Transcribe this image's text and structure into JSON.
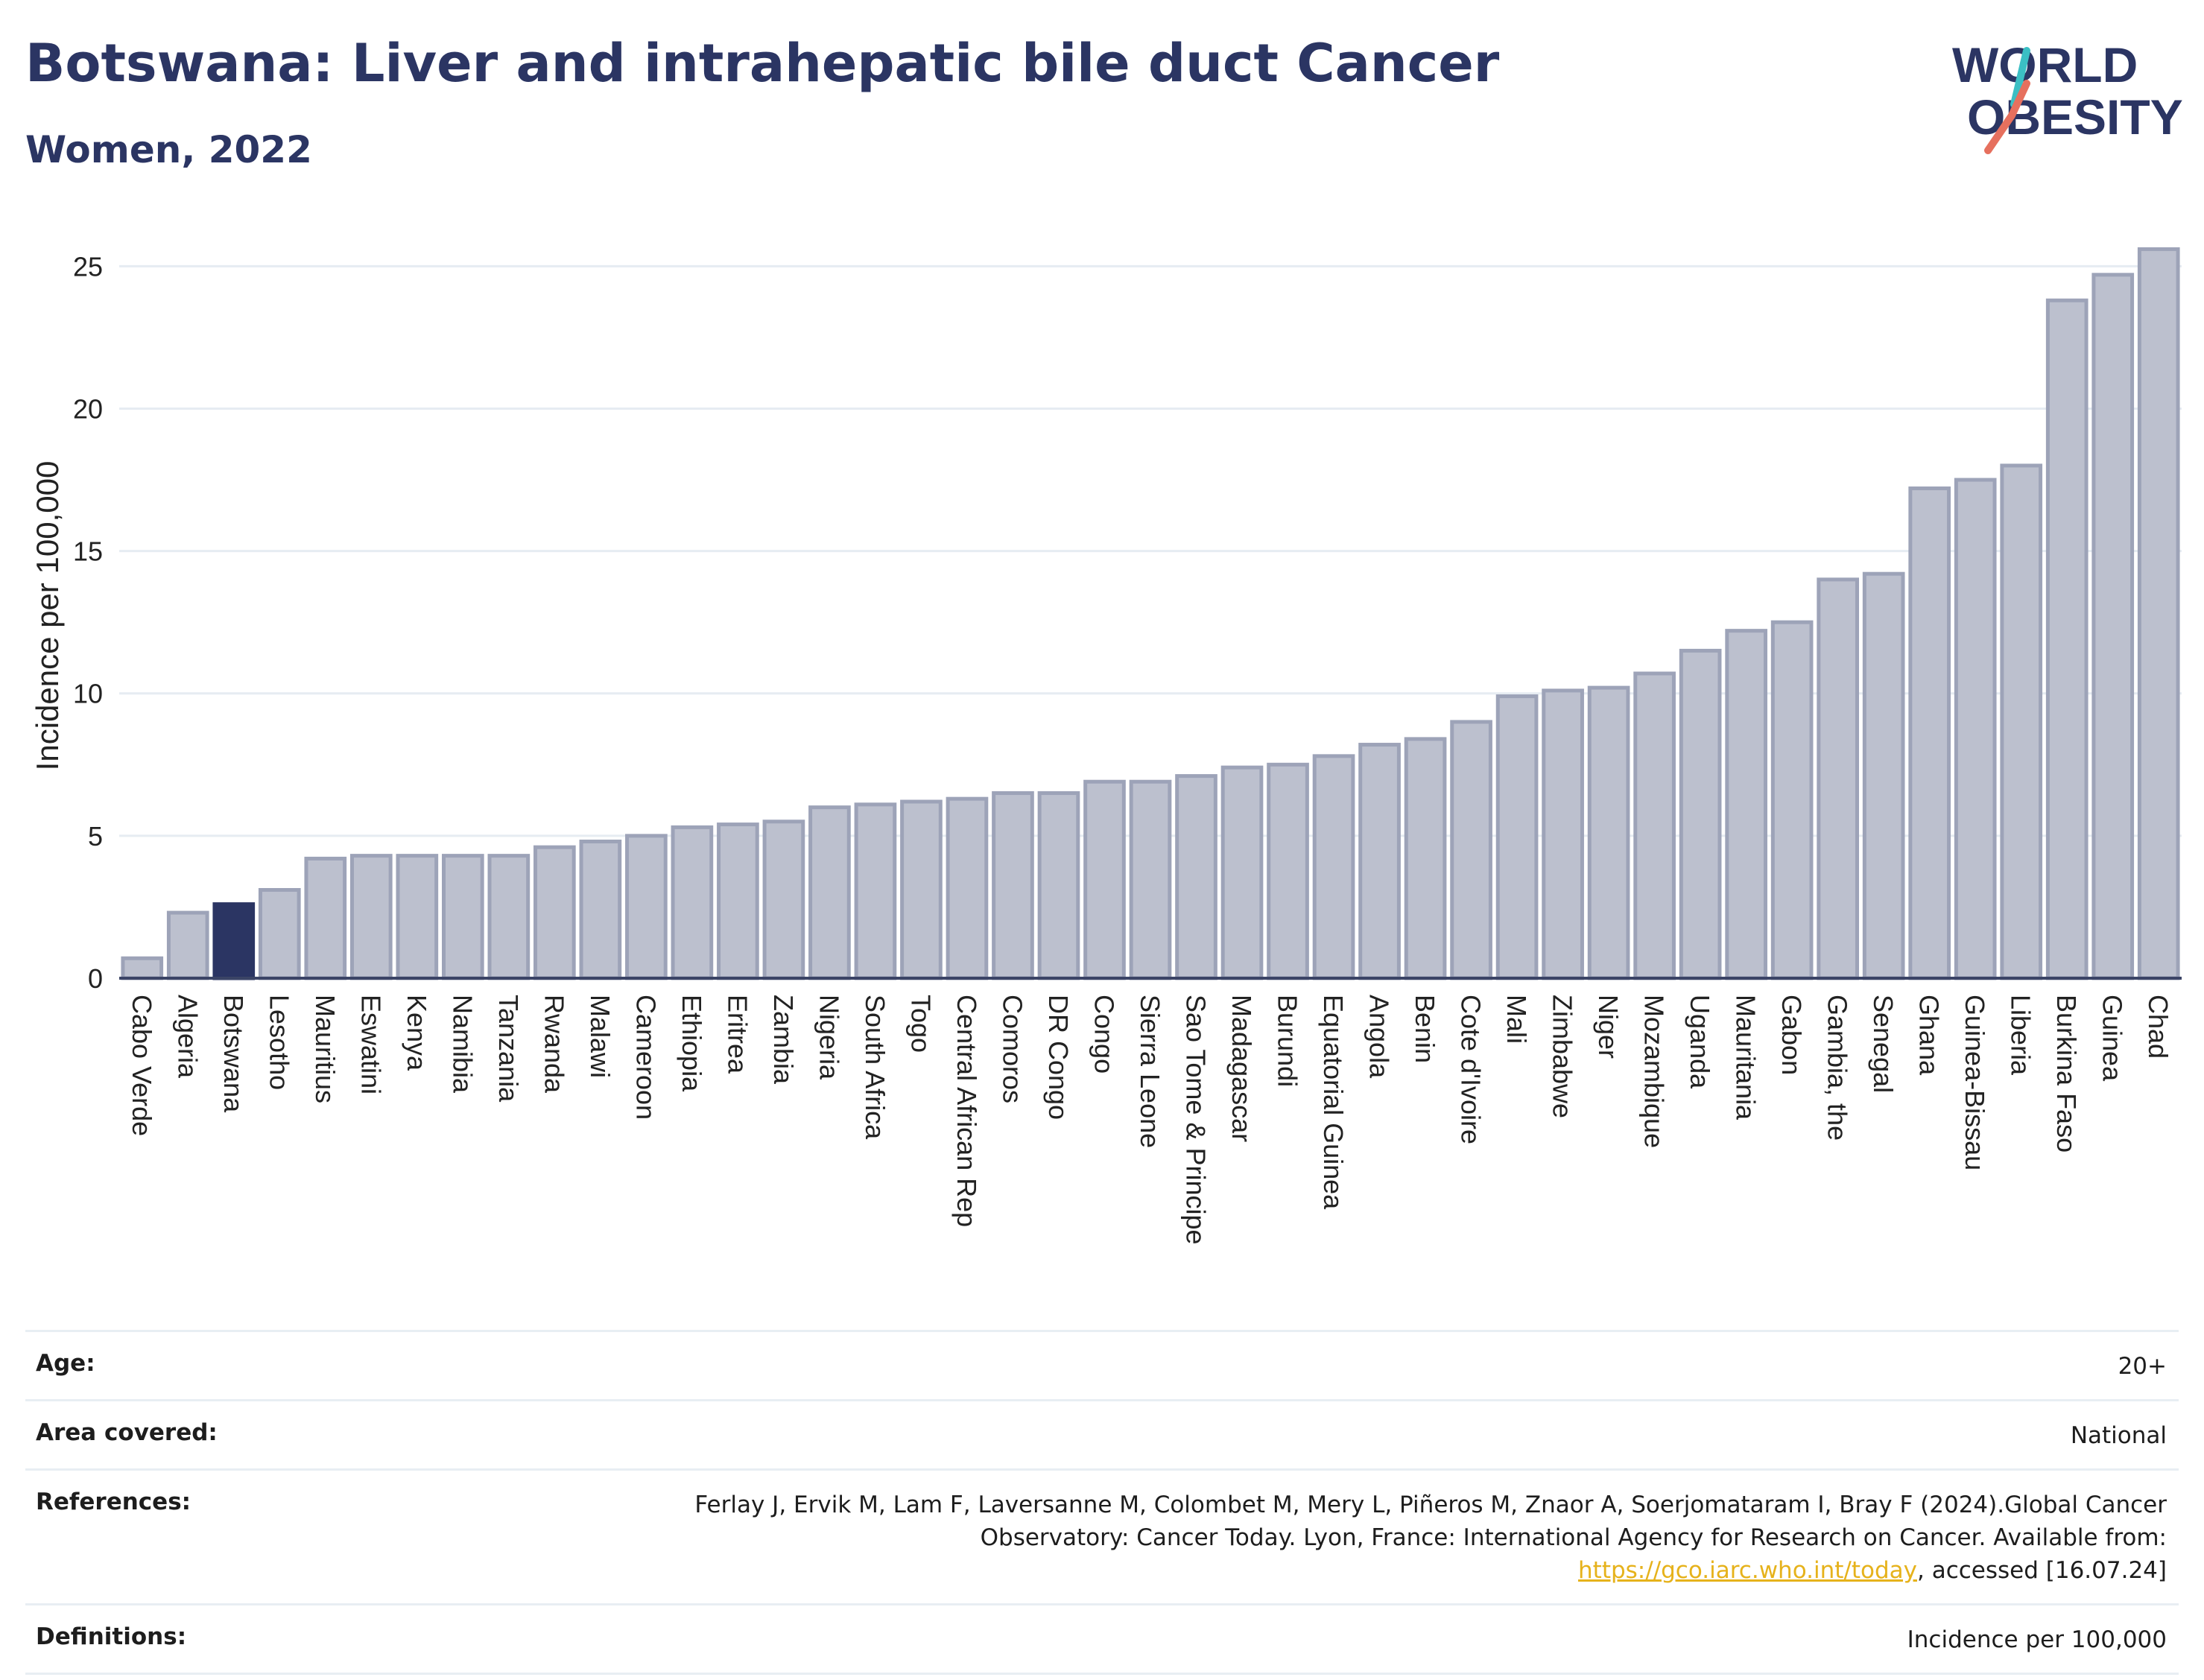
{
  "header": {
    "title": "Botswana: Liver and intrahepatic bile duct Cancer",
    "subtitle": "Women, 2022",
    "logo_text_top": "WORLD",
    "logo_text_bottom": "OBESITY"
  },
  "colors": {
    "bar": "#bcc0ce",
    "bar_stroke": "#9da3b8",
    "highlight": "#2b3563",
    "text": "#2b3563",
    "grid": "#e6ecf2",
    "link": "#e6b21b",
    "logo_accent_teal": "#3bbfc4",
    "logo_accent_coral": "#e6705e"
  },
  "chart_data": {
    "type": "bar",
    "title": "Botswana: Liver and intrahepatic bile duct Cancer",
    "subtitle": "Women, 2022",
    "xlabel": "",
    "ylabel": "Incidence per 100,000",
    "ylim": [
      0,
      26.5
    ],
    "yticks": [
      0,
      5,
      10,
      15,
      20,
      25
    ],
    "grid": true,
    "highlight": "Botswana",
    "categories": [
      "Cabo Verde",
      "Algeria",
      "Botswana",
      "Lesotho",
      "Mauritius",
      "Eswatini",
      "Kenya",
      "Namibia",
      "Tanzania",
      "Rwanda",
      "Malawi",
      "Cameroon",
      "Ethiopia",
      "Eritrea",
      "Zambia",
      "Nigeria",
      "South Africa",
      "Togo",
      "Central African Rep",
      "Comoros",
      "DR Congo",
      "Congo",
      "Sierra Leone",
      "Sao Tome & Principe",
      "Madagascar",
      "Burundi",
      "Equatorial Guinea",
      "Angola",
      "Benin",
      "Cote d'Ivoire",
      "Mali",
      "Zimbabwe",
      "Niger",
      "Mozambique",
      "Uganda",
      "Mauritania",
      "Gabon",
      "Gambia, the",
      "Senegal",
      "Ghana",
      "Guinea-Bissau",
      "Liberia",
      "Burkina Faso",
      "Guinea",
      "Chad"
    ],
    "values": [
      0.7,
      2.3,
      2.6,
      3.1,
      4.2,
      4.3,
      4.3,
      4.3,
      4.3,
      4.6,
      4.8,
      5.0,
      5.3,
      5.4,
      5.5,
      6.0,
      6.1,
      6.2,
      6.3,
      6.5,
      6.5,
      6.9,
      6.9,
      7.1,
      7.4,
      7.5,
      7.8,
      8.2,
      8.4,
      9.0,
      9.9,
      10.1,
      10.2,
      10.7,
      11.5,
      12.2,
      12.5,
      14.0,
      14.2,
      17.2,
      17.5,
      18.0,
      23.8,
      24.7,
      25.6
    ]
  },
  "info": {
    "age_label": "Age:",
    "age_value": "20+",
    "area_label": "Area covered:",
    "area_value": "National",
    "references_label": "References:",
    "references_text": "Ferlay J, Ervik M, Lam F, Laversanne M, Colombet M, Mery L, Piñeros M, Znaor A, Soerjomataram I, Bray F (2024).Global Cancer Observatory: Cancer Today. Lyon, France: International Agency for Research on Cancer. Available from: ",
    "references_link": "https://gco.iarc.who.int/today",
    "references_suffix": ", accessed [16.07.24]",
    "definitions_label": "Definitions:",
    "definitions_value": "Incidence per 100,000"
  }
}
